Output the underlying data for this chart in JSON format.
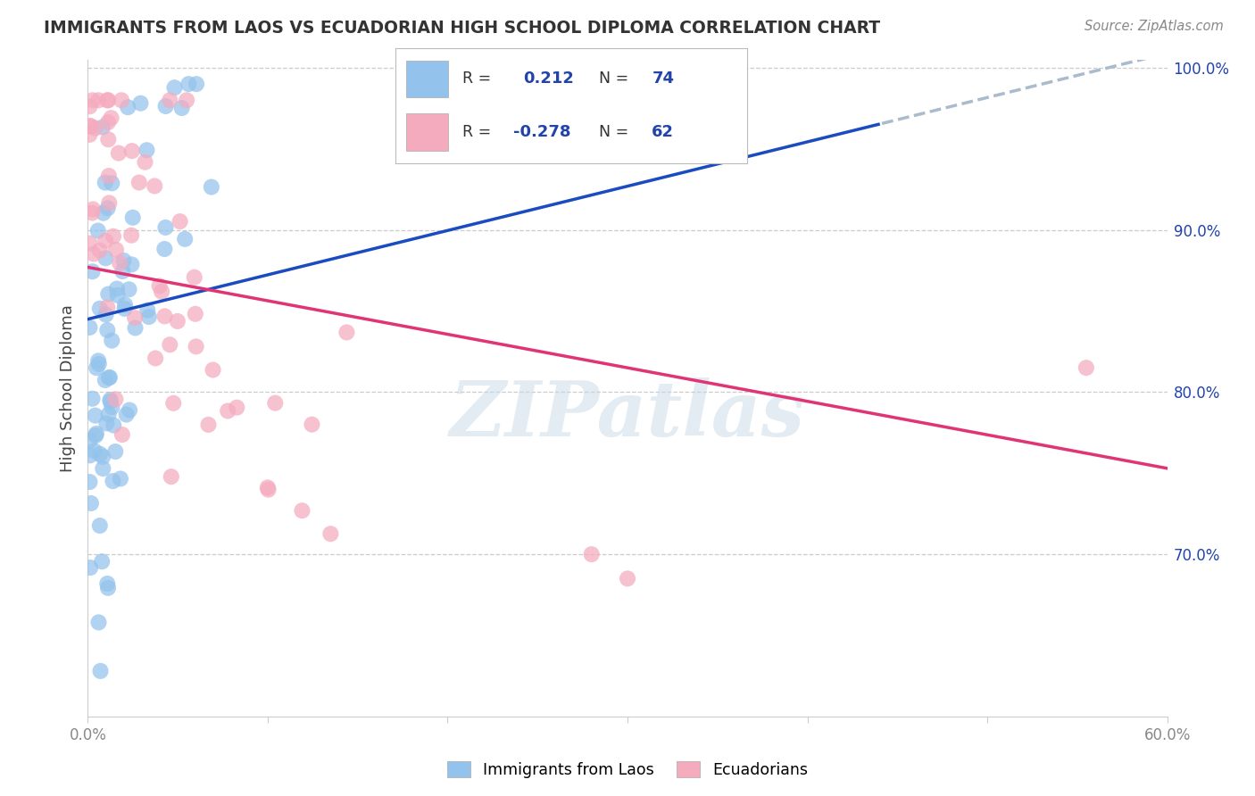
{
  "title": "IMMIGRANTS FROM LAOS VS ECUADORIAN HIGH SCHOOL DIPLOMA CORRELATION CHART",
  "source": "Source: ZipAtlas.com",
  "ylabel": "High School Diploma",
  "watermark": "ZIPatlas",
  "blue_label": "Immigrants from Laos",
  "pink_label": "Ecuadorians",
  "blue_R": 0.212,
  "blue_N": 74,
  "pink_R": -0.278,
  "pink_N": 62,
  "xlim": [
    0.0,
    0.6
  ],
  "ylim": [
    0.6,
    1.005
  ],
  "right_ytick_vals": [
    0.7,
    0.8,
    0.9,
    1.0
  ],
  "right_yticklabels": [
    "70.0%",
    "80.0%",
    "90.0%",
    "100.0%"
  ],
  "blue_color": "#93C3EC",
  "pink_color": "#F5ABBE",
  "blue_line_color": "#1A4CC0",
  "pink_line_color": "#E03575",
  "dashed_line_color": "#AABBCC",
  "grid_color": "#CCCCCC",
  "legend_value_color": "#2244AA",
  "title_color": "#333333",
  "source_color": "#888888",
  "tick_color": "#888888"
}
